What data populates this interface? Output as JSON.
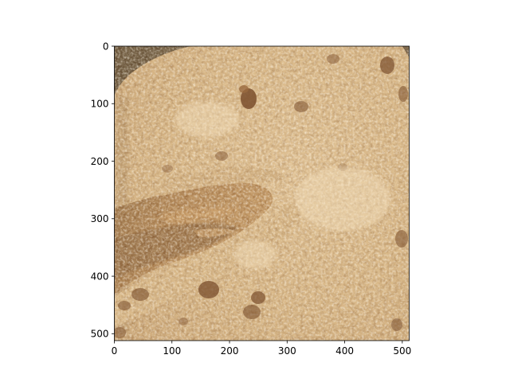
{
  "figure": {
    "background": "#ffffff",
    "image": {
      "subject": "crumble-topped baked dessert in a dark pan",
      "palette": {
        "topping_light": "#e6c79a",
        "topping_mid": "#cda577",
        "topping_dark": "#a98058",
        "filling": "#9a6534",
        "filling_dark": "#5e3615",
        "pan": "#120d08",
        "nut": "#7a4e2c"
      }
    },
    "axes": {
      "x_range": [
        0,
        512
      ],
      "y_range": [
        512,
        0
      ],
      "x_ticks": [
        "0",
        "100",
        "200",
        "300",
        "400",
        "500"
      ],
      "y_ticks": [
        "0",
        "100",
        "200",
        "300",
        "400",
        "500"
      ],
      "x_tick_values": [
        0,
        100,
        200,
        300,
        400,
        500
      ],
      "y_tick_values": [
        0,
        100,
        200,
        300,
        400,
        500
      ]
    }
  }
}
